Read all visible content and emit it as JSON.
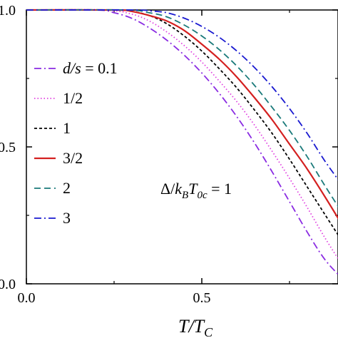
{
  "chart_data": {
    "type": "line",
    "xlabel": "T/T_C",
    "ylabel": "",
    "xlim": [
      0.0,
      0.92
    ],
    "ylim": [
      0.0,
      1.0
    ],
    "x_ticks": [
      "0.0",
      "0.5"
    ],
    "y_ticks": [
      "0.0",
      "0.5",
      "1.0"
    ],
    "y_tick_labels_visible": [
      ".0",
      ".5",
      ".0"
    ],
    "annotation": "Δ/k_B T_0c = 1",
    "legend_location": "left-middle",
    "series": [
      {
        "name": "d/s = 0.1",
        "color": "#8a2be2",
        "dash": "dashdot",
        "x": [
          0.0,
          0.2,
          0.25,
          0.3,
          0.35,
          0.4,
          0.45,
          0.5,
          0.55,
          0.6,
          0.65,
          0.7,
          0.75,
          0.8,
          0.85,
          0.9,
          0.92
        ],
        "y": [
          1.0,
          1.0,
          0.99,
          0.97,
          0.935,
          0.89,
          0.835,
          0.77,
          0.695,
          0.61,
          0.515,
          0.41,
          0.3,
          0.19,
          0.09,
          0.02,
          0.0
        ]
      },
      {
        "name": "1/2",
        "color": "#e040e0",
        "dash": "dot",
        "x": [
          0.0,
          0.22,
          0.3,
          0.35,
          0.4,
          0.45,
          0.5,
          0.55,
          0.6,
          0.65,
          0.7,
          0.75,
          0.8,
          0.85,
          0.9,
          0.92
        ],
        "y": [
          1.0,
          1.0,
          0.985,
          0.96,
          0.92,
          0.87,
          0.81,
          0.74,
          0.665,
          0.58,
          0.485,
          0.385,
          0.28,
          0.17,
          0.07,
          0.04
        ]
      },
      {
        "name": "1",
        "color": "#000000",
        "dash": "dash-fine",
        "x": [
          0.0,
          0.25,
          0.3,
          0.35,
          0.4,
          0.45,
          0.5,
          0.55,
          0.6,
          0.65,
          0.7,
          0.75,
          0.8,
          0.85,
          0.9,
          0.92
        ],
        "y": [
          1.0,
          1.0,
          0.995,
          0.98,
          0.95,
          0.905,
          0.85,
          0.785,
          0.715,
          0.635,
          0.55,
          0.455,
          0.355,
          0.255,
          0.155,
          0.11
        ]
      },
      {
        "name": "3/2",
        "color": "#d42020",
        "dash": "solid",
        "x": [
          0.0,
          0.25,
          0.3,
          0.35,
          0.4,
          0.45,
          0.5,
          0.55,
          0.6,
          0.65,
          0.7,
          0.75,
          0.8,
          0.85,
          0.9,
          0.92
        ],
        "y": [
          1.0,
          1.0,
          0.995,
          0.98,
          0.96,
          0.925,
          0.875,
          0.82,
          0.755,
          0.68,
          0.6,
          0.51,
          0.42,
          0.32,
          0.215,
          0.17
        ]
      },
      {
        "name": "2",
        "color": "#1a7a7a",
        "dash": "dash",
        "x": [
          0.0,
          0.28,
          0.35,
          0.4,
          0.45,
          0.5,
          0.55,
          0.6,
          0.65,
          0.7,
          0.75,
          0.8,
          0.85,
          0.9,
          0.92
        ],
        "y": [
          1.0,
          1.0,
          0.99,
          0.975,
          0.945,
          0.905,
          0.855,
          0.795,
          0.725,
          0.645,
          0.56,
          0.465,
          0.36,
          0.26,
          0.22
        ]
      },
      {
        "name": "3",
        "color": "#1a1ad0",
        "dash": "dashdot",
        "x": [
          0.0,
          0.3,
          0.35,
          0.4,
          0.45,
          0.5,
          0.55,
          0.6,
          0.65,
          0.7,
          0.75,
          0.8,
          0.85,
          0.9,
          0.92
        ],
        "y": [
          1.0,
          1.0,
          0.997,
          0.99,
          0.97,
          0.94,
          0.9,
          0.85,
          0.79,
          0.72,
          0.64,
          0.55,
          0.45,
          0.36,
          0.32
        ]
      }
    ]
  }
}
